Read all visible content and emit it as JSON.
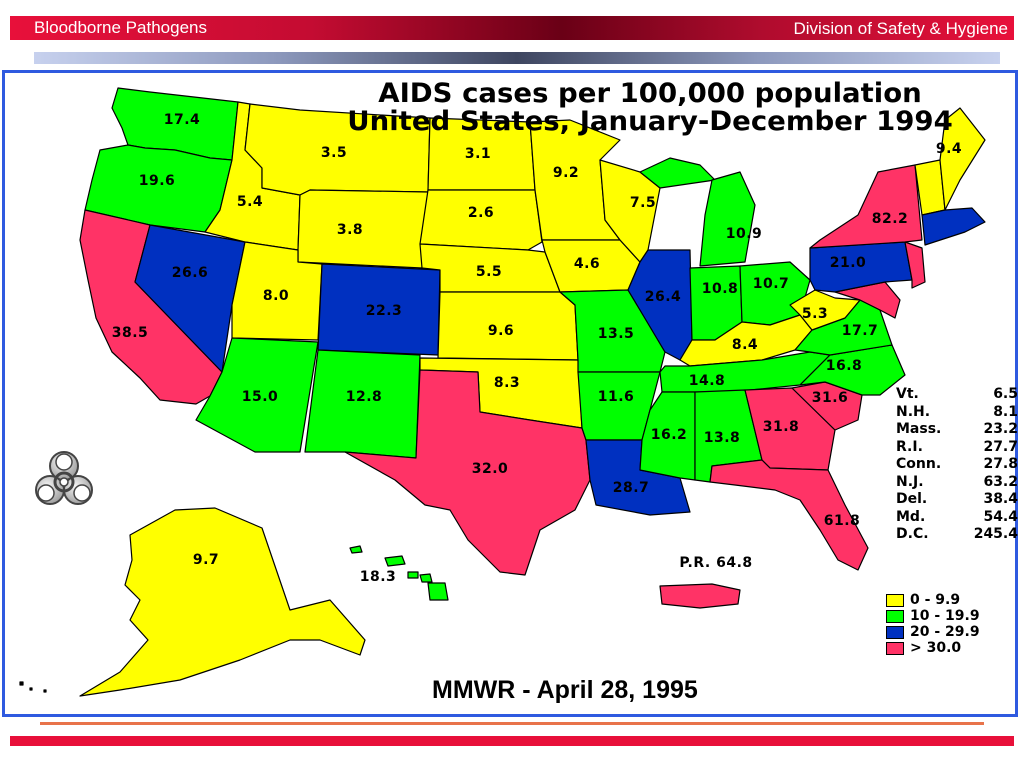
{
  "header": {
    "left_title": "Bloodborne Pathogens",
    "right_title": "Division of Safety & Hygiene"
  },
  "map": {
    "title_line1": "AIDS cases per 100,000 population",
    "title_line2": "United States, January-December 1994",
    "source": "MMWR - April 28, 1995",
    "colors": {
      "yellow": "#ffff00",
      "green": "#00ff00",
      "blue": "#0030c0",
      "red": "#ff3366"
    },
    "states": [
      {
        "name": "Washington",
        "value": "17.4"
      },
      {
        "name": "Oregon",
        "value": "19.6"
      },
      {
        "name": "California",
        "value": "38.5"
      },
      {
        "name": "Nevada",
        "value": "26.6"
      },
      {
        "name": "Idaho",
        "value": "5.4"
      },
      {
        "name": "Montana",
        "value": "3.5"
      },
      {
        "name": "Wyoming",
        "value": "3.8"
      },
      {
        "name": "Utah",
        "value": "8.0"
      },
      {
        "name": "Colorado",
        "value": "22.3"
      },
      {
        "name": "Arizona",
        "value": "15.0"
      },
      {
        "name": "New Mexico",
        "value": "12.8"
      },
      {
        "name": "North Dakota",
        "value": "3.1"
      },
      {
        "name": "South Dakota",
        "value": "2.6"
      },
      {
        "name": "Nebraska",
        "value": "5.5"
      },
      {
        "name": "Kansas",
        "value": "9.6"
      },
      {
        "name": "Oklahoma",
        "value": "8.3"
      },
      {
        "name": "Texas",
        "value": "32.0"
      },
      {
        "name": "Minnesota",
        "value": "9.2"
      },
      {
        "name": "Iowa",
        "value": "4.6"
      },
      {
        "name": "Missouri",
        "value": "13.5"
      },
      {
        "name": "Arkansas",
        "value": "11.6"
      },
      {
        "name": "Louisiana",
        "value": "28.7"
      },
      {
        "name": "Wisconsin",
        "value": "7.5"
      },
      {
        "name": "Illinois",
        "value": "26.4"
      },
      {
        "name": "Michigan",
        "value": "10.9"
      },
      {
        "name": "Indiana",
        "value": "10.8"
      },
      {
        "name": "Ohio",
        "value": "10.7"
      },
      {
        "name": "Kentucky",
        "value": "8.4"
      },
      {
        "name": "Tennessee",
        "value": "14.8"
      },
      {
        "name": "Mississippi",
        "value": "16.2"
      },
      {
        "name": "Alabama",
        "value": "13.8"
      },
      {
        "name": "Georgia",
        "value": "31.8"
      },
      {
        "name": "Florida",
        "value": "61.8"
      },
      {
        "name": "South Carolina",
        "value": "31.6"
      },
      {
        "name": "North Carolina",
        "value": "16.8"
      },
      {
        "name": "Virginia",
        "value": "17.7"
      },
      {
        "name": "West Virginia",
        "value": "5.3"
      },
      {
        "name": "Pennsylvania",
        "value": "21.0"
      },
      {
        "name": "New York",
        "value": "82.2"
      },
      {
        "name": "Maine",
        "value": "9.4"
      },
      {
        "name": "Alaska",
        "value": "9.7"
      },
      {
        "name": "Hawaii",
        "value": "18.3"
      },
      {
        "name": "Puerto Rico",
        "value": "P.R. 64.8"
      }
    ],
    "small_states": [
      {
        "name": "Vt.",
        "value": "6.5"
      },
      {
        "name": "N.H.",
        "value": "8.1"
      },
      {
        "name": "Mass.",
        "value": "23.2"
      },
      {
        "name": "R.I.",
        "value": "27.7"
      },
      {
        "name": "Conn.",
        "value": "27.8"
      },
      {
        "name": "N.J.",
        "value": "63.2"
      },
      {
        "name": "Del.",
        "value": "38.4"
      },
      {
        "name": "Md.",
        "value": "54.4"
      },
      {
        "name": "D.C.",
        "value": "245.4"
      }
    ],
    "legend": [
      {
        "label": "0 - 9.9",
        "color": "#ffff00"
      },
      {
        "label": "10 - 19.9",
        "color": "#00ff00"
      },
      {
        "label": "20 - 29.9",
        "color": "#0030c0"
      },
      {
        "label": "> 30.0",
        "color": "#ff3366"
      }
    ]
  }
}
